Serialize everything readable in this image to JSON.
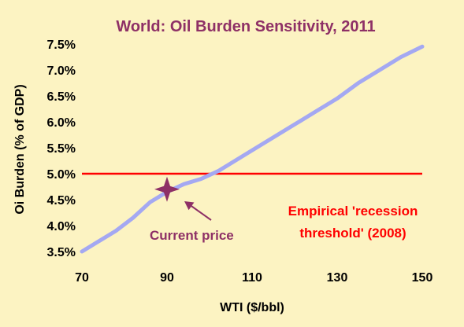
{
  "chart_data": {
    "type": "line",
    "title": "World:  Oil Burden Sensitivity, 2011",
    "xlabel": "WTI ($/bbl)",
    "ylabel": "Oi Burden (% of GDP)",
    "xlim": [
      70,
      150
    ],
    "ylim": [
      3.5,
      7.5
    ],
    "x_ticks": [
      "70",
      "90",
      "110",
      "130",
      "150"
    ],
    "y_ticks": [
      "3.5%",
      "4.0%",
      "4.5%",
      "5.0%",
      "5.5%",
      "6.0%",
      "6.5%",
      "7.0%",
      "7.5%"
    ],
    "grid": false,
    "series": [
      {
        "color": "#a4a8f2",
        "x": [
          70,
          74,
          78,
          82,
          86,
          90,
          94,
          98,
          102,
          106,
          110,
          115,
          120,
          125,
          130,
          135,
          140,
          145,
          150
        ],
        "y": [
          3.5,
          3.7,
          3.9,
          4.15,
          4.45,
          4.65,
          4.8,
          4.9,
          5.05,
          5.25,
          5.45,
          5.7,
          5.95,
          6.2,
          6.45,
          6.75,
          7.0,
          7.25,
          7.45
        ]
      }
    ],
    "reference_lines": [
      {
        "y": 5.0,
        "color": "#ff0000",
        "label_lines": [
          "Empirical 'recession",
          "threshold' (2008)"
        ]
      }
    ],
    "markers": [
      {
        "x": 90,
        "y": 4.7,
        "color": "#8e3066",
        "label": "Current price"
      }
    ]
  },
  "colors": {
    "background": "#fcf3c2",
    "title": "#8e3066",
    "annotation": "#8e3066",
    "threshold": "#ff0000",
    "line": "#a4a8f2"
  }
}
